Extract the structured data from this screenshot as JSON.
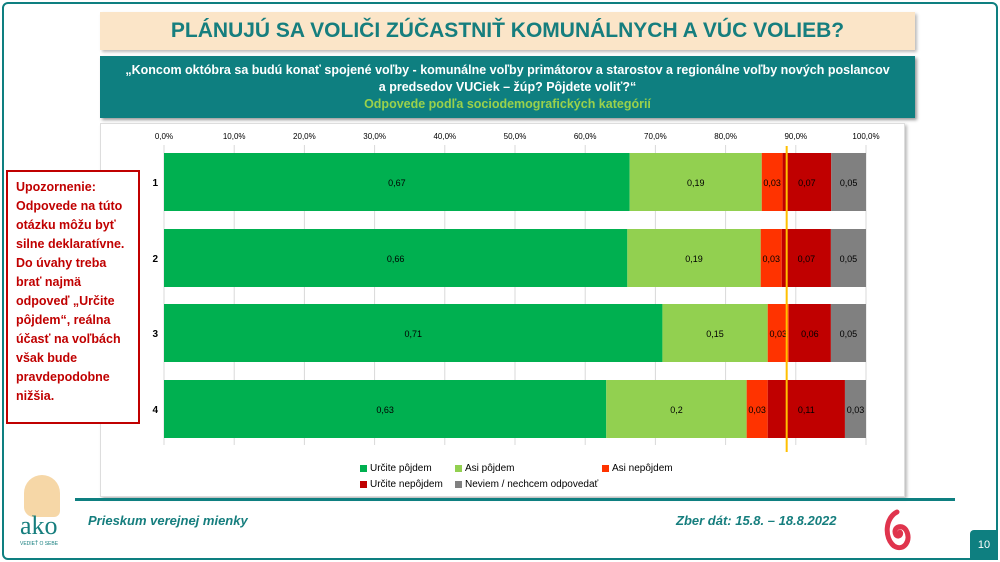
{
  "title": "PLÁNUJÚ SA VOLIČI ZÚČASTNIŤ KOMUNÁLNYCH A VÚC VOLIEB?",
  "question": {
    "line1": "„Koncom októbra sa budú konať spojené voľby - komunálne voľby primátorov a starostov a regionálne voľby nových poslancov",
    "line2": "a predsedov VUCiek – žúp? Pôjdete voliť?“",
    "sub": "Odpovede podľa sociodemografických kategórií"
  },
  "warning": "Upozornenie: Odpovede na túto otázku môžu byť silne deklaratívne. Do úvahy treba brať najmä odpoveď „Určite pôjdem“, reálna účasť na voľbách však bude pravdepodobne nižšia.",
  "footer": {
    "left": "Prieskum verejnej mienky",
    "right": "Zber dát: 15.8. – 18.8.2022",
    "page": "10",
    "logo_text": "ako",
    "logo_tagline": "VEDIEŤ O SEBE"
  },
  "chart_data": {
    "type": "bar",
    "orientation": "horizontal",
    "stacked": true,
    "categories": [
      "1",
      "2",
      "3",
      "4"
    ],
    "x_ticks": [
      "0,0%",
      "10,0%",
      "20,0%",
      "30,0%",
      "40,0%",
      "50,0%",
      "60,0%",
      "70,0%",
      "80,0%",
      "90,0%",
      "100,0%"
    ],
    "xlim": [
      0,
      1
    ],
    "grid": true,
    "legend": "bottom",
    "reference_line": 0.887,
    "series": [
      {
        "name": "Určite pôjdem",
        "color": "#00b050",
        "values": [
          0.67,
          0.66,
          0.71,
          0.63
        ],
        "labels": [
          "0,67",
          "0,66",
          "0,71",
          "0,63"
        ]
      },
      {
        "name": "Asi pôjdem",
        "color": "#92d050",
        "values": [
          0.19,
          0.19,
          0.15,
          0.2
        ],
        "labels": [
          "0,19",
          "0,19",
          "0,15",
          "0,2"
        ]
      },
      {
        "name": "Asi nepôjdem",
        "color": "#ff3300",
        "values": [
          0.03,
          0.03,
          0.03,
          0.03
        ],
        "labels": [
          "0,03",
          "0,03",
          "0,03",
          "0,03"
        ]
      },
      {
        "name": "Určite nepôjdem",
        "color": "#c00000",
        "values": [
          0.07,
          0.07,
          0.06,
          0.11
        ],
        "labels": [
          "0,07",
          "0,07",
          "0,06",
          "0,11"
        ]
      },
      {
        "name": "Neviem / nechcem odpovedať",
        "color": "#808080",
        "values": [
          0.05,
          0.05,
          0.05,
          0.03
        ],
        "labels": [
          "0,05",
          "0,05",
          "0,05",
          "0,03"
        ]
      }
    ]
  }
}
